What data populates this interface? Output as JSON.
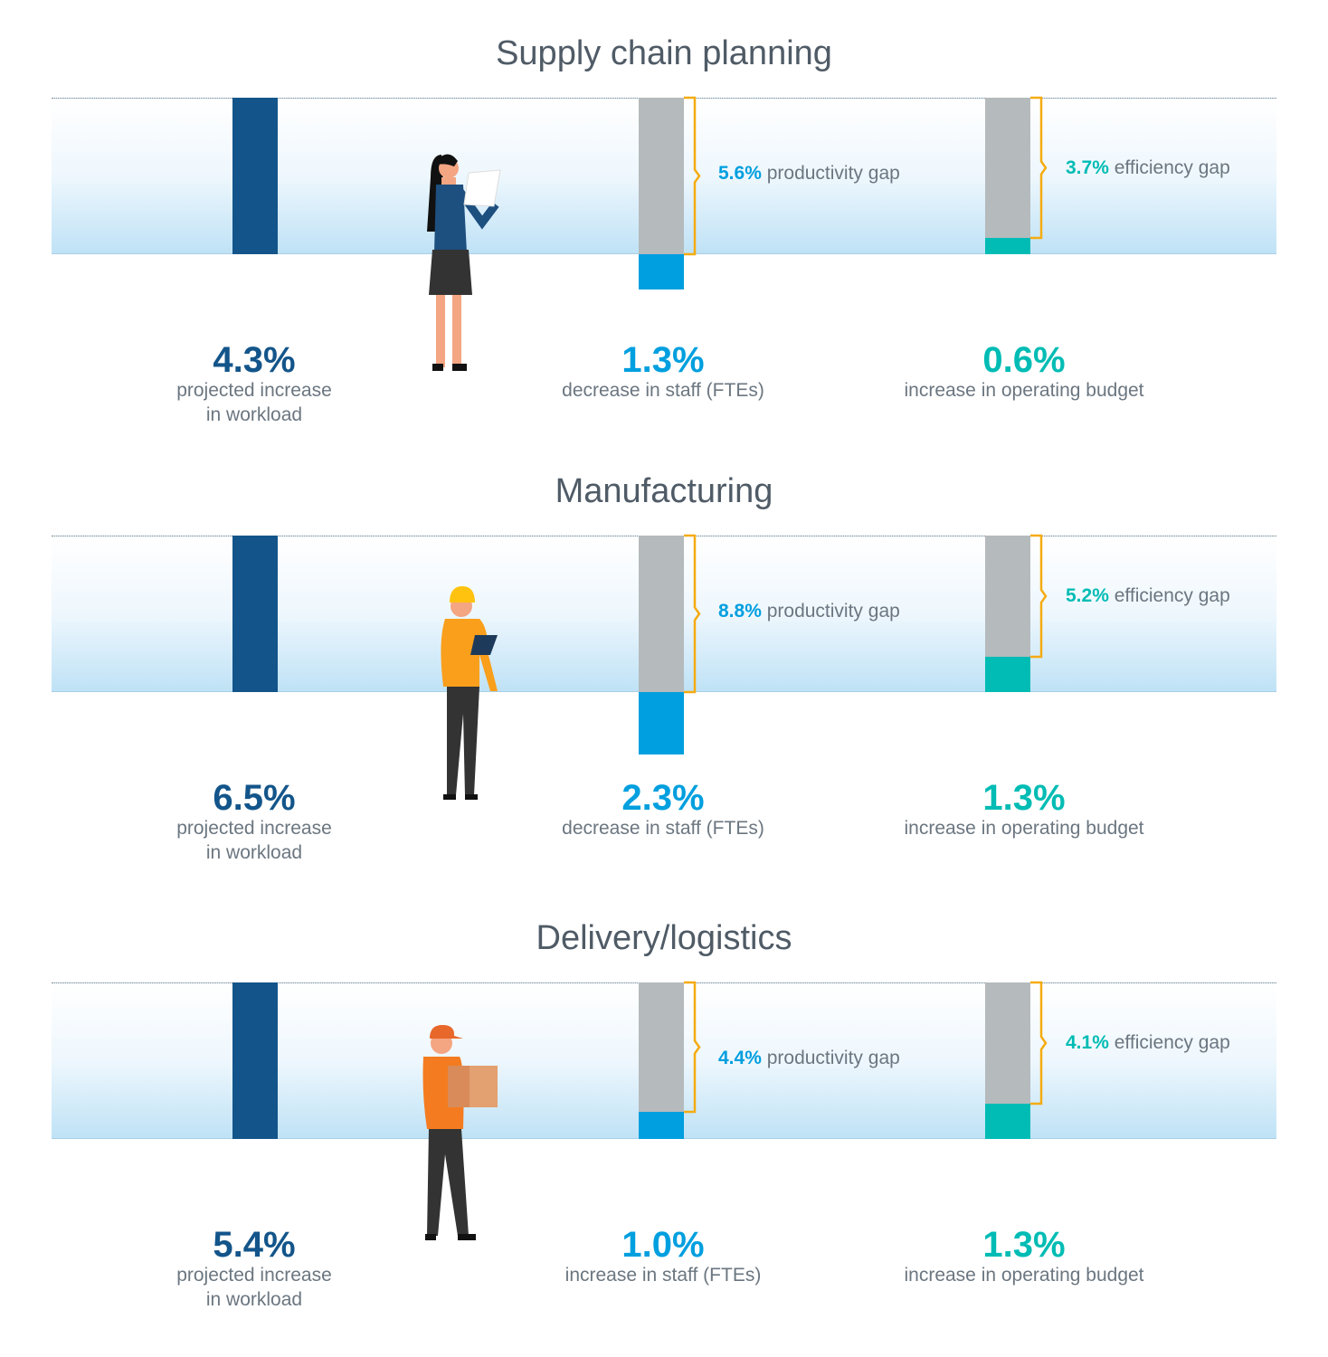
{
  "colors": {
    "workload": "#13558a",
    "staff": "#009fdf",
    "budget": "#00bcb4",
    "gap_bar": "#b5babc",
    "bracket": "#f5ab11",
    "text": "#6b7680",
    "title": "#4f5b66"
  },
  "chart_data": {
    "type": "bar",
    "sections": [
      {
        "title": "Supply chain planning",
        "person_icon": "woman-with-clipboard-icon",
        "workload": {
          "value": "4.3%",
          "label": [
            "projected increase",
            "in workload"
          ],
          "num": 4.3
        },
        "staff": {
          "value": "1.3%",
          "label": "decrease in staff (FTEs)",
          "num": -1.3
        },
        "budget": {
          "value": "0.6%",
          "label": "increase in operating budget",
          "num": 0.6
        },
        "productivity_gap": {
          "value": "5.6%",
          "label": "productivity gap",
          "num": 5.6
        },
        "efficiency_gap": {
          "value": "3.7%",
          "label": "efficiency gap",
          "num": 3.7
        }
      },
      {
        "title": "Manufacturing",
        "person_icon": "worker-with-hardhat-icon",
        "workload": {
          "value": "6.5%",
          "label": [
            "projected increase",
            "in workload"
          ],
          "num": 6.5
        },
        "staff": {
          "value": "2.3%",
          "label": "decrease in staff (FTEs)",
          "num": -2.3
        },
        "budget": {
          "value": "1.3%",
          "label": "increase in operating budget",
          "num": 1.3
        },
        "productivity_gap": {
          "value": "8.8%",
          "label": "productivity gap",
          "num": 8.8
        },
        "efficiency_gap": {
          "value": "5.2%",
          "label": "efficiency gap",
          "num": 5.2
        }
      },
      {
        "title": "Delivery/logistics",
        "person_icon": "delivery-person-with-box-icon",
        "workload": {
          "value": "5.4%",
          "label": [
            "projected increase",
            "in workload"
          ],
          "num": 5.4
        },
        "staff": {
          "value": "1.0%",
          "label": "increase in staff (FTEs)",
          "num": 1.0
        },
        "budget": {
          "value": "1.3%",
          "label": "increase in operating budget",
          "num": 1.3
        },
        "productivity_gap": {
          "value": "4.4%",
          "label": "productivity gap",
          "num": 4.4
        },
        "efficiency_gap": {
          "value": "4.1%",
          "label": "efficiency gap",
          "num": 4.1
        }
      }
    ]
  }
}
